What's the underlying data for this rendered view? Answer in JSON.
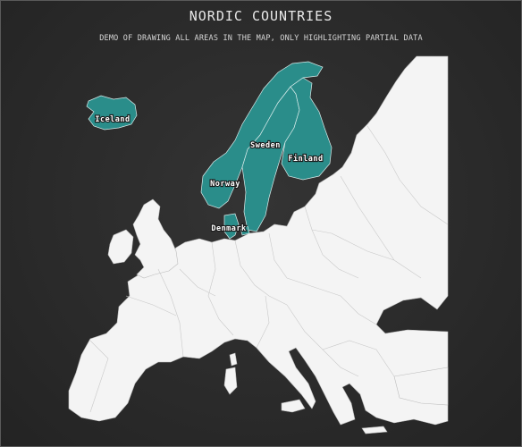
{
  "chart": {
    "title": "NORDIC COUNTRIES",
    "subtitle": "DEMO OF DRAWING ALL AREAS IN THE MAP, ONLY HIGHLIGHTING PARTIAL DATA"
  },
  "map": {
    "region": "Europe",
    "highlighted_countries": [
      {
        "label": "Iceland"
      },
      {
        "label": "Sweden"
      },
      {
        "label": "Finland"
      },
      {
        "label": "Norway"
      },
      {
        "label": "Denmark"
      }
    ],
    "colors": {
      "background": "#2b2b2b",
      "land": "#f4f4f4",
      "highlight": "#2a8d8a",
      "border": "#bdbdbd"
    }
  }
}
